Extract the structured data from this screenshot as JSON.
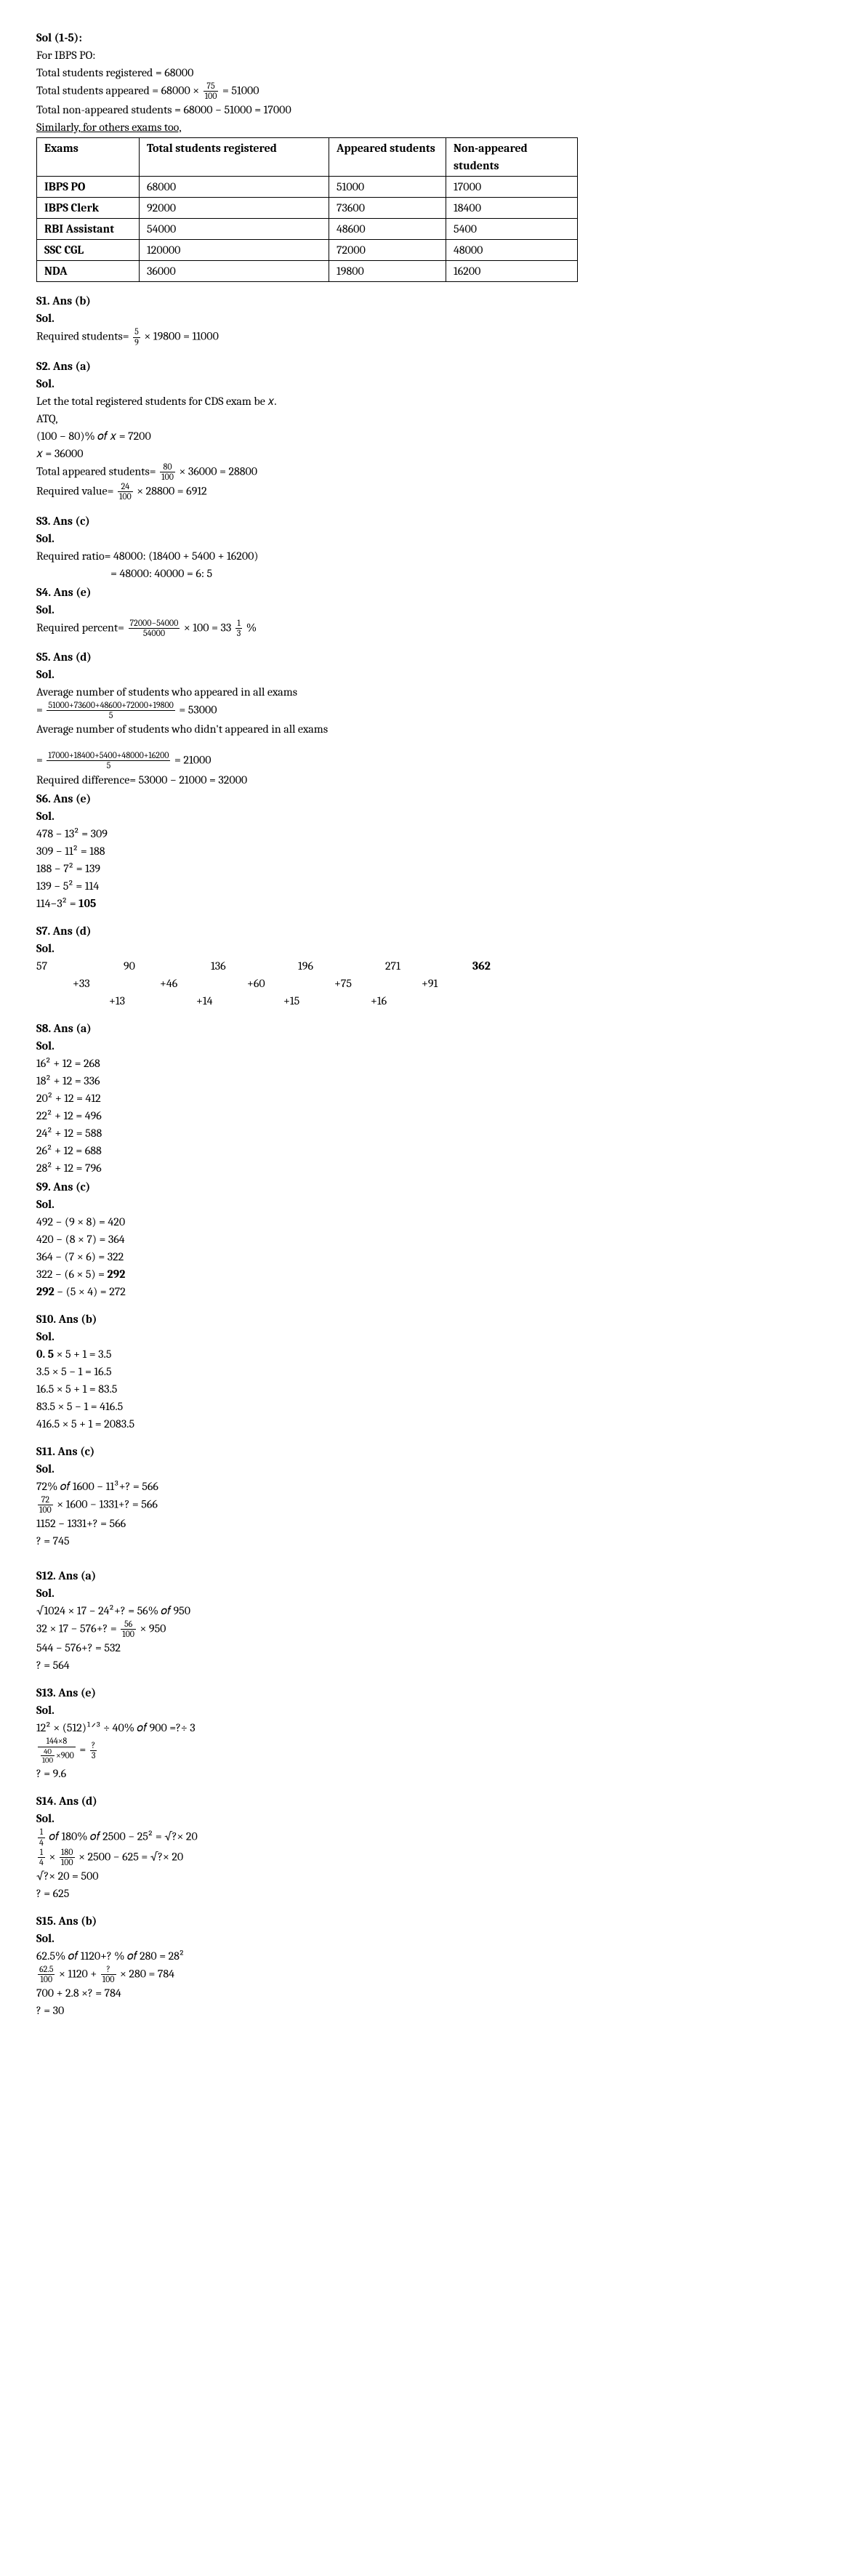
{
  "intro": {
    "heading": "Sol (1-5):",
    "line1": "For IBPS PO:",
    "line2_prefix": "Total students registered ",
    "line2_val": "= 68000",
    "line3_prefix": "Total students appeared ",
    "line3_expr_a": "= 68000 ×",
    "line3_frac_num": "75",
    "line3_frac_den": "100",
    "line3_expr_b": "= 51000",
    "line4_prefix": "Total non-appeared students  ",
    "line4_val": "= 68000 − 51000 = 17000",
    "line5": "Similarly, for others exams too,"
  },
  "table": {
    "headers": [
      "Exams",
      "Total students registered",
      "Appeared students",
      "Non-appeared students"
    ],
    "rows": [
      [
        "IBPS PO",
        "68000",
        "51000",
        "17000"
      ],
      [
        "IBPS Clerk",
        "92000",
        "73600",
        "18400"
      ],
      [
        "RBI Assistant",
        "54000",
        "48600",
        "5400"
      ],
      [
        "SSC CGL",
        "120000",
        "72000",
        "48000"
      ],
      [
        "NDA",
        "36000",
        "19800",
        "16200"
      ]
    ]
  },
  "s1": {
    "title": "S1. Ans (b)",
    "sol": "Sol.",
    "line_a": "Required students=",
    "frac_num": "5",
    "frac_den": "9",
    "line_b": "× 19800 = 11000"
  },
  "s2": {
    "title": "S2. Ans (a)",
    "sol": "Sol.",
    "l1": "Let the total registered students for CDS exam be 𝑥.",
    "l2": "ATQ,",
    "l3": " (100 − 80)% 𝑜𝑓 𝑥 = 7200",
    "l4": " 𝑥 = 36000",
    "l5a": "Total appeared students=",
    "l5_num": "80",
    "l5_den": "100",
    "l5b": "× 36000 = 28800",
    "l6a": "Required value=",
    "l6_num": "24",
    "l6_den": "100",
    "l6b": "× 28800 = 6912"
  },
  "s3": {
    "title": "S3. Ans (c)",
    "sol": "Sol.",
    "l1": "Required ratio= 48000: (18400 + 5400 + 16200)",
    "l2": "                             = 48000: 40000 = 6: 5"
  },
  "s4": {
    "title": "S4. Ans (e)",
    "sol": "Sol.",
    "a": "Required percent=",
    "frac_num": "72000−54000",
    "frac_den": "54000",
    "b": "× 100 = 33",
    "mix_num": "1",
    "mix_den": "3",
    "c": "%"
  },
  "s5": {
    "title": "S5. Ans (d)",
    "sol": "Sol.",
    "l1": "Average number of students who appeared in all exams",
    "eq1_pre": "=",
    "f1_num": "51000+73600+48600+72000+19800",
    "f1_den": "5",
    "eq1_post": "= 53000",
    "l2": "Average number of students who didn't appeared in all exams",
    "eq2_pre": "=",
    "f2_num": "17000+18400+5400+48000+16200",
    "f2_den": "5",
    "eq2_post": "= 21000",
    "l3": "Required difference= 53000 − 21000 = 32000"
  },
  "s6": {
    "title": "S6. Ans (e)",
    "sol": "Sol.",
    "l": [
      "478 − 13² = 309",
      "309 − 11² = 188",
      "188 − 7² = 139",
      "139 − 5² = 114"
    ],
    "last_a": "114−3² = ",
    "last_b": "105"
  },
  "s7": {
    "title": "S7. Ans (d)",
    "sol": "Sol.",
    "row1": [
      "57",
      "90",
      "136",
      "196",
      "271",
      "362"
    ],
    "row2": [
      "+33",
      "+46",
      "+60",
      "+75",
      "+91",
      ""
    ],
    "row3": [
      "+13",
      "+14",
      "+15",
      "+16",
      "",
      ""
    ]
  },
  "s8": {
    "title": "S8. Ans (a)",
    "sol": "Sol.",
    "l": [
      "16² + 12 = 268",
      "18² + 12 = 336",
      "20² + 12 = 412",
      "22² + 12 = 496",
      "24² + 12 = 588",
      "26² + 12 = 688",
      "28² + 12 = 796"
    ]
  },
  "s9": {
    "title": "S9. Ans (c)",
    "sol": "Sol.",
    "l": [
      " 492 − (9 × 8) = 420",
      " 420 − (8 × 7) = 364",
      " 364 − (7 × 6) = 322"
    ],
    "bold_a": " 322 − (6 × 5) = ",
    "bold_b": "292",
    "last_a": " 292",
    "last_b": " − (5 × 4) = 272"
  },
  "s10": {
    "title": "S10. Ans (b)",
    "sol": "Sol.",
    "bold_a": "0. 5",
    "l1b": " × 5 + 1 = 3.5",
    "l": [
      "3.5 × 5 − 1 = 16.5",
      "16.5 × 5 + 1 = 83.5",
      "83.5 × 5 − 1 = 416.5",
      "416.5 × 5 + 1 = 2083.5"
    ]
  },
  "s11": {
    "title": "S11. Ans (c)",
    "sol": "Sol.",
    "l1": "72% 𝑜𝑓 1600 − 11³+? = 566",
    "l2_num": "72",
    "l2_den": "100",
    "l2b": "× 1600 − 1331+? = 566",
    "l3": "1152 − 1331+? = 566",
    "l4": "? = 745"
  },
  "s12": {
    "title": "S12. Ans (a)",
    "sol": "Sol.",
    "l1": " √1024 × 17 − 24²+? = 56% 𝑜𝑓 950",
    "l2a": " 32 × 17 − 576+? =",
    "l2_num": "56",
    "l2_den": "100",
    "l2b": "× 950",
    "l3": " 544 − 576+? = 532",
    "l4": " ? = 564"
  },
  "s13": {
    "title": "S13. Ans (e)",
    "sol": "Sol.",
    "l1": " 12² × (512)¹ᐟ³ ÷ 40% 𝑜𝑓 900 =?÷ 3",
    "l2_num": "144×8",
    "l2_den_num": "40",
    "l2_den_den": "100",
    "l2_den_b": "×900",
    "l2_eq": "=",
    "l2_rnum": "?",
    "l2_rden": "3",
    "l3": " ? = 9.6"
  },
  "s14": {
    "title": "S14. Ans (d)",
    "sol": "Sol.",
    "l1_num": "1",
    "l1_den": "4",
    "l1b": "𝑜𝑓 180% 𝑜𝑓 2500 − 25² = √?× 20",
    "l2_f1_num": "1",
    "l2_f1_den": "4",
    "l2_mid": "×",
    "l2_f2_num": "180",
    "l2_f2_den": "100",
    "l2b": "× 2500 − 625 = √?× 20",
    "l3": " √?× 20 = 500",
    "l4": " ? = 625"
  },
  "s15": {
    "title": "S15. Ans (b)",
    "sol": "Sol.",
    "l1": "62.5% 𝑜𝑓 1120+? % 𝑜𝑓 280 = 28²",
    "l2_f1_num": "62.5",
    "l2_f1_den": "100",
    "l2_mid1": "× 1120 +",
    "l2_f2_num": "?",
    "l2_f2_den": "100",
    "l2b": "× 280 = 784",
    "l3": "700 + 2.8 ×? = 784",
    "l4": "? = 30"
  }
}
